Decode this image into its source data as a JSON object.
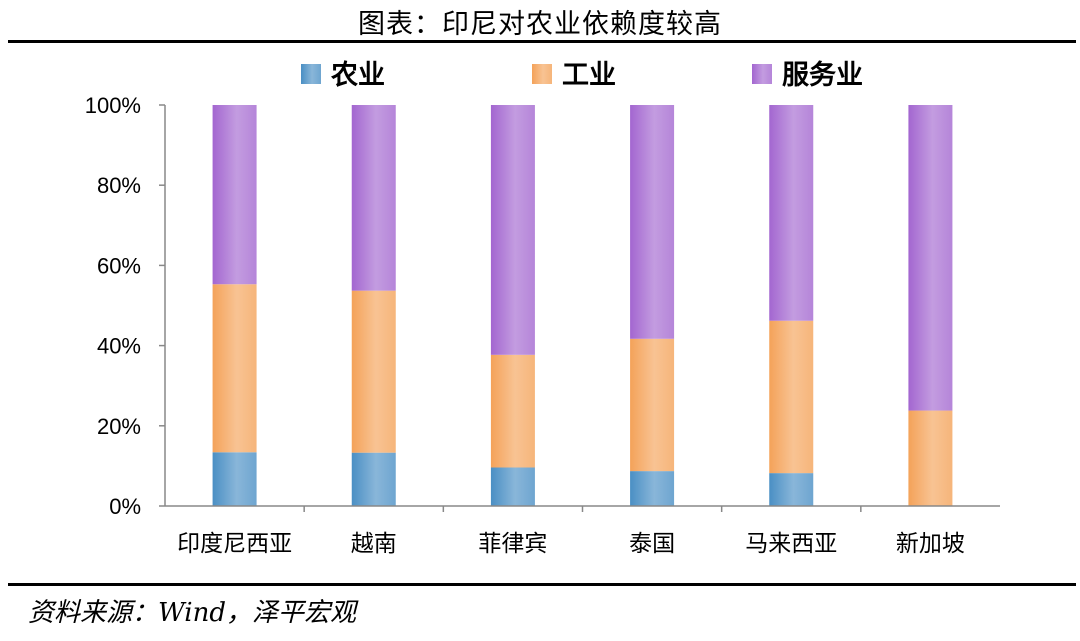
{
  "page": {
    "title": "图表：印尼对农业依赖度较高",
    "source": "资料来源：Wind，泽平宏观"
  },
  "chart_data": {
    "type": "bar",
    "stacked": true,
    "categories": [
      "印度尼西亚",
      "越南",
      "菲律宾",
      "泰国",
      "马来西亚",
      "新加坡"
    ],
    "series": [
      {
        "name": "农业",
        "color": "#4a8fc4",
        "values": [
          13.4,
          13.3,
          9.6,
          8.7,
          8.2,
          0.0
        ]
      },
      {
        "name": "工业",
        "color": "#f4a259",
        "values": [
          41.9,
          40.4,
          28.1,
          33.0,
          38.0,
          23.8
        ]
      },
      {
        "name": "服务业",
        "color": "#a366d0",
        "values": [
          44.7,
          46.3,
          62.3,
          58.3,
          53.8,
          76.2
        ]
      }
    ],
    "ylim": [
      0,
      100
    ],
    "yticks": [
      "0%",
      "20%",
      "40%",
      "60%",
      "80%",
      "100%"
    ],
    "legend_position": "top",
    "grid": false
  }
}
